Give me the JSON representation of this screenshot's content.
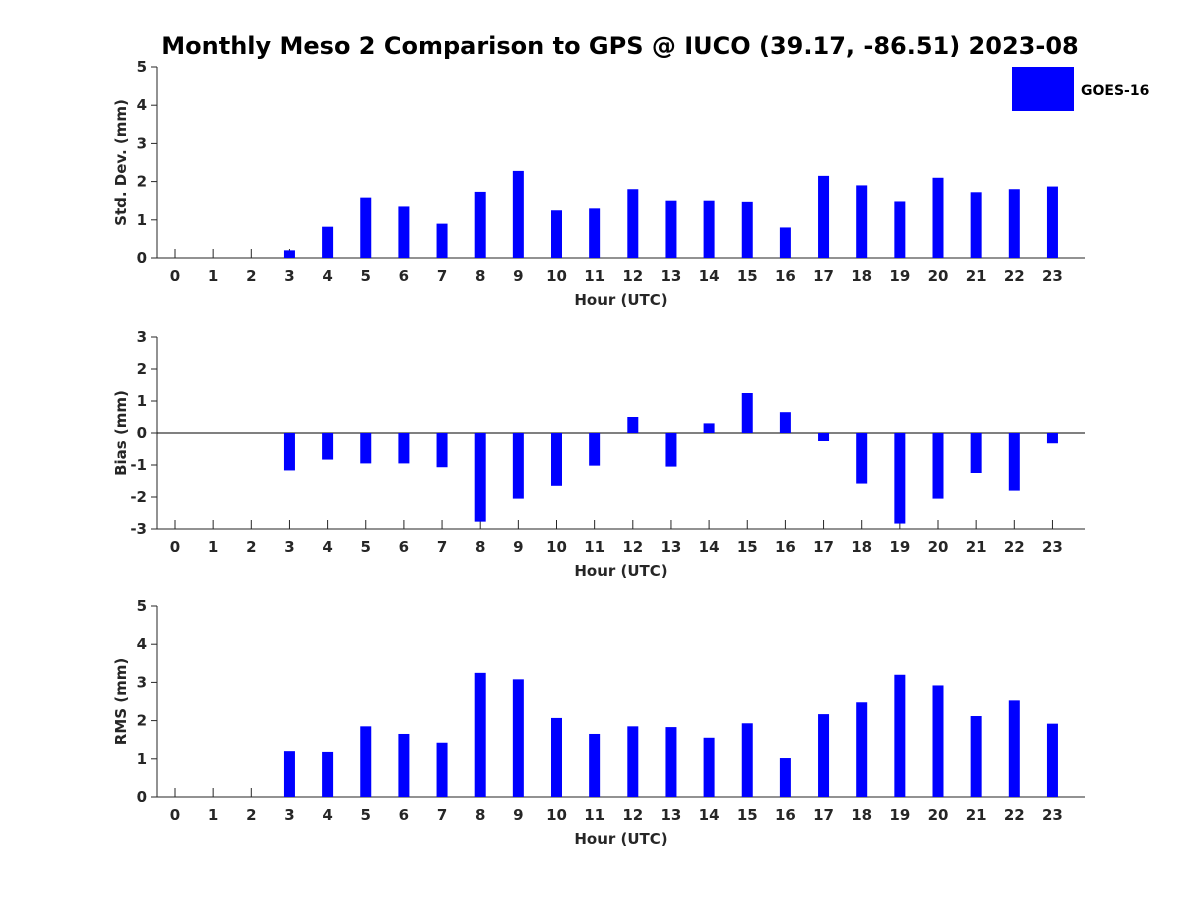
{
  "title": "Monthly Meso 2 Comparison to GPS @ IUCO (39.17, -86.51) 2023-08",
  "legend": {
    "label": "GOES-16",
    "color": "#0000ff",
    "placement": "top-right"
  },
  "chart_data": [
    {
      "type": "bar",
      "id": "std",
      "ylabel": "Std. Dev. (mm)",
      "xlabel": "Hour (UTC)",
      "ylim": [
        0,
        5
      ],
      "yticks": [
        0,
        1,
        2,
        3,
        4,
        5
      ],
      "categories": [
        "0",
        "1",
        "2",
        "3",
        "4",
        "5",
        "6",
        "7",
        "8",
        "9",
        "10",
        "11",
        "12",
        "13",
        "14",
        "15",
        "16",
        "17",
        "18",
        "19",
        "20",
        "21",
        "22",
        "23"
      ],
      "series": [
        {
          "name": "GOES-16",
          "values": [
            null,
            null,
            null,
            0.2,
            0.82,
            1.58,
            1.35,
            0.9,
            1.73,
            2.28,
            1.25,
            1.3,
            1.8,
            1.5,
            1.5,
            1.47,
            0.8,
            2.15,
            1.9,
            1.48,
            2.1,
            1.72,
            1.8,
            1.87
          ]
        }
      ],
      "grid": false
    },
    {
      "type": "bar",
      "id": "bias",
      "ylabel": "Bias (mm)",
      "xlabel": "Hour (UTC)",
      "ylim": [
        -3,
        3
      ],
      "yticks": [
        -3,
        -2,
        -1,
        0,
        1,
        2,
        3
      ],
      "categories": [
        "0",
        "1",
        "2",
        "3",
        "4",
        "5",
        "6",
        "7",
        "8",
        "9",
        "10",
        "11",
        "12",
        "13",
        "14",
        "15",
        "16",
        "17",
        "18",
        "19",
        "20",
        "21",
        "22",
        "23"
      ],
      "series": [
        {
          "name": "GOES-16",
          "values": [
            null,
            null,
            null,
            -1.17,
            -0.83,
            -0.95,
            -0.95,
            -1.07,
            -2.77,
            -2.05,
            -1.65,
            -1.02,
            0.5,
            -1.05,
            0.3,
            1.25,
            0.65,
            -0.25,
            -1.58,
            -2.83,
            -2.05,
            -1.25,
            -1.8,
            -0.32
          ]
        }
      ],
      "zero_line": true,
      "grid": false
    },
    {
      "type": "bar",
      "id": "rms",
      "ylabel": "RMS (mm)",
      "xlabel": "Hour (UTC)",
      "ylim": [
        0,
        5
      ],
      "yticks": [
        0,
        1,
        2,
        3,
        4,
        5
      ],
      "categories": [
        "0",
        "1",
        "2",
        "3",
        "4",
        "5",
        "6",
        "7",
        "8",
        "9",
        "10",
        "11",
        "12",
        "13",
        "14",
        "15",
        "16",
        "17",
        "18",
        "19",
        "20",
        "21",
        "22",
        "23"
      ],
      "series": [
        {
          "name": "GOES-16",
          "values": [
            null,
            null,
            null,
            1.2,
            1.18,
            1.85,
            1.65,
            1.42,
            3.25,
            3.08,
            2.07,
            1.65,
            1.85,
            1.83,
            1.55,
            1.93,
            1.02,
            2.17,
            2.48,
            3.2,
            2.92,
            2.12,
            2.53,
            1.92
          ]
        }
      ],
      "grid": false
    }
  ]
}
